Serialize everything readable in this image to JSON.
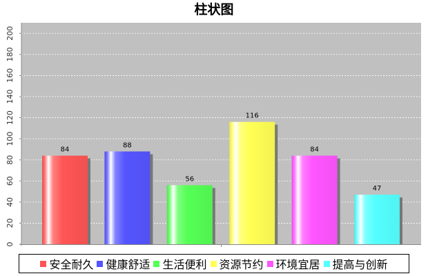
{
  "chart_data": {
    "type": "bar",
    "title": "柱状图",
    "categories": [
      "安全耐久",
      "健康舒适",
      "生活便利",
      "资源节约",
      "环境宜居",
      "提高与创新"
    ],
    "values": [
      84,
      88,
      56,
      116,
      84,
      47
    ],
    "colors": [
      "#ff5555",
      "#5555ff",
      "#55ff55",
      "#ffff55",
      "#ff55ff",
      "#55ffff"
    ],
    "ylim": [
      0,
      210
    ],
    "yticks": [
      0,
      20,
      40,
      60,
      80,
      100,
      120,
      140,
      160,
      180,
      200
    ],
    "xlabel": "",
    "ylabel": "",
    "grid": true,
    "plot_background": "#c0c0c0",
    "legend_position": "bottom"
  }
}
